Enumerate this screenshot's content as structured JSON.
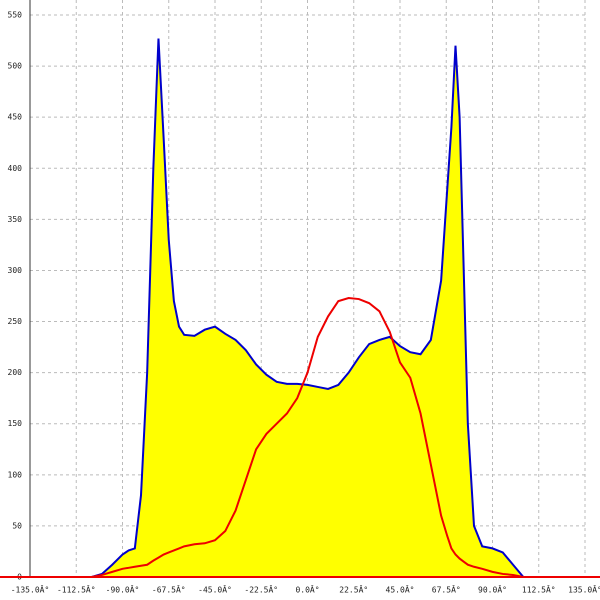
{
  "chart_data": {
    "type": "area-line",
    "x": [
      -105,
      -100,
      -95,
      -90,
      -87,
      -84,
      -81,
      -78,
      -75,
      -72.5,
      -70,
      -67.5,
      -65,
      -62.5,
      -60,
      -55,
      -50,
      -45,
      -40,
      -35,
      -30,
      -25,
      -20,
      -15,
      -10,
      -5,
      0,
      5,
      10,
      15,
      20,
      25,
      30,
      35,
      40,
      45,
      50,
      55,
      60,
      65,
      68,
      70,
      72,
      74,
      76,
      78,
      81,
      85,
      90,
      95,
      100,
      105
    ],
    "series": [
      {
        "color": "#0000cc",
        "fill": "#ffff00",
        "values": [
          0,
          3,
          12,
          22,
          26,
          28,
          80,
          200,
          400,
          527,
          430,
          330,
          270,
          245,
          237,
          236,
          242,
          245,
          238,
          232,
          222,
          208,
          198,
          191,
          189,
          189,
          188,
          186,
          184,
          188,
          200,
          215,
          228,
          232,
          235,
          226,
          220,
          218,
          232,
          290,
          380,
          440,
          520,
          450,
          300,
          150,
          50,
          30,
          28,
          24,
          12,
          0
        ]
      },
      {
        "color": "#ee0000",
        "values": [
          0,
          2,
          5,
          8,
          9,
          10,
          11,
          12,
          16,
          19,
          22,
          24,
          26,
          28,
          30,
          32,
          33,
          36,
          45,
          65,
          95,
          125,
          140,
          150,
          160,
          175,
          200,
          235,
          255,
          270,
          273,
          272,
          268,
          260,
          240,
          210,
          195,
          160,
          110,
          60,
          40,
          28,
          22,
          18,
          15,
          12,
          10,
          8,
          5,
          3,
          2,
          0
        ]
      }
    ],
    "xlim": [
      -135,
      135
    ],
    "xticks": [
      {
        "value": -135,
        "label": "-135.0Â°"
      },
      {
        "value": -112.5,
        "label": "-112.5Â°"
      },
      {
        "value": -90,
        "label": "-90.0Â°"
      },
      {
        "value": -67.5,
        "label": "-67.5Â°"
      },
      {
        "value": -45,
        "label": "-45.0Â°"
      },
      {
        "value": -22.5,
        "label": "-22.5Â°"
      },
      {
        "value": 0,
        "label": "0.0Â°"
      },
      {
        "value": 22.5,
        "label": "22.5Â°"
      },
      {
        "value": 45,
        "label": "45.0Â°"
      },
      {
        "value": 67.5,
        "label": "67.5Â°"
      },
      {
        "value": 90,
        "label": "90.0Â°"
      },
      {
        "value": 112.5,
        "label": "112.5Â°"
      },
      {
        "value": 135,
        "label": "135.0Â°"
      }
    ],
    "ylim": [
      0,
      550
    ],
    "yticks": [
      0,
      50,
      100,
      150,
      200,
      250,
      300,
      350,
      400,
      450,
      500,
      550
    ],
    "grid": true
  }
}
